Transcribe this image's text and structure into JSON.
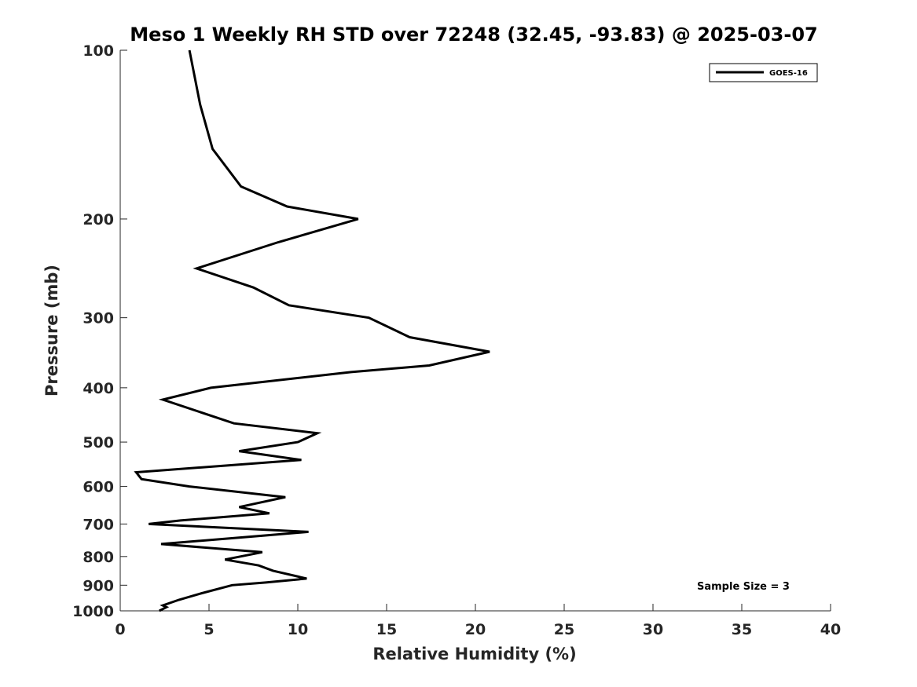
{
  "chart_data": {
    "type": "line",
    "title": "Meso 1 Weekly RH STD over 72248 (32.45, -93.83) @ 2025-03-07",
    "xlabel": "Relative Humidity (%)",
    "ylabel": "Pressure (mb)",
    "xlim": [
      0,
      40
    ],
    "ylim": [
      1000,
      100
    ],
    "y_scale": "log",
    "y_direction": "reversed",
    "x_ticks": [
      0,
      5,
      10,
      15,
      20,
      25,
      30,
      35,
      40
    ],
    "y_ticks": [
      100,
      200,
      300,
      400,
      500,
      600,
      700,
      800,
      900,
      1000
    ],
    "grid": false,
    "legend_position": "top-right",
    "annotation": "Sample Size = 3",
    "series": [
      {
        "name": "GOES-16",
        "color": "#000000",
        "points": [
          [
            3.9,
            100
          ],
          [
            4.5,
            125
          ],
          [
            5.2,
            150
          ],
          [
            6.8,
            175
          ],
          [
            9.4,
            190
          ],
          [
            13.4,
            200
          ],
          [
            8.9,
            220
          ],
          [
            4.3,
            245
          ],
          [
            7.5,
            265
          ],
          [
            9.5,
            285
          ],
          [
            14.0,
            300
          ],
          [
            16.3,
            325
          ],
          [
            20.8,
            345
          ],
          [
            17.4,
            365
          ],
          [
            13.0,
            375
          ],
          [
            5.1,
            400
          ],
          [
            2.4,
            420
          ],
          [
            6.4,
            463
          ],
          [
            11.1,
            482
          ],
          [
            10.0,
            500
          ],
          [
            6.7,
            519
          ],
          [
            10.2,
            538
          ],
          [
            0.9,
            566
          ],
          [
            1.2,
            582
          ],
          [
            3.9,
            600
          ],
          [
            9.3,
            627
          ],
          [
            6.7,
            653
          ],
          [
            8.4,
            670
          ],
          [
            3.4,
            690
          ],
          [
            1.6,
            700
          ],
          [
            10.6,
            723
          ],
          [
            7.9,
            735
          ],
          [
            2.3,
            760
          ],
          [
            8.0,
            786
          ],
          [
            5.9,
            810
          ],
          [
            7.8,
            830
          ],
          [
            8.6,
            848
          ],
          [
            10.5,
            876
          ],
          [
            8.2,
            890
          ],
          [
            6.3,
            900
          ],
          [
            4.6,
            930
          ],
          [
            3.3,
            956
          ],
          [
            2.4,
            978
          ],
          [
            2.6,
            985
          ],
          [
            2.2,
            1000
          ]
        ]
      }
    ]
  }
}
